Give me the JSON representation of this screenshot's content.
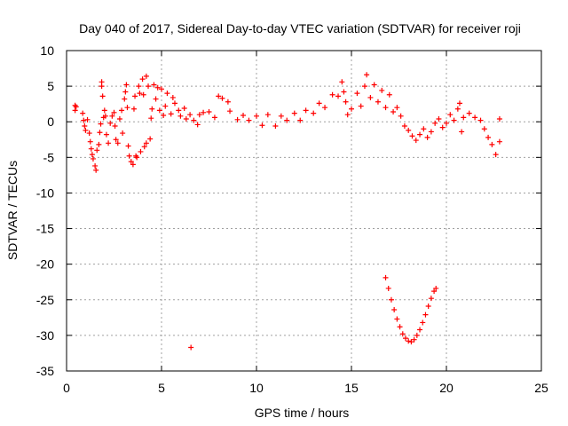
{
  "chart_data": {
    "type": "scatter",
    "title": "Day 040 of 2017, Sidereal Day-to-day VTEC variation (SDTVAR) for receiver roji",
    "xlabel": "GPS time / hours",
    "ylabel": "SDTVAR / TECUs",
    "xlim": [
      0,
      25
    ],
    "ylim": [
      -35,
      10
    ],
    "xticks": [
      0,
      5,
      10,
      15,
      20,
      25
    ],
    "yticks": [
      10,
      5,
      0,
      -5,
      -10,
      -15,
      -20,
      -25,
      -30,
      -35
    ],
    "grid": true,
    "marker": "+",
    "color": "#ff0000",
    "series": [
      {
        "name": "SDTVAR",
        "points": [
          [
            0.45,
            2.3
          ],
          [
            0.45,
            1.6
          ],
          [
            0.5,
            2.1
          ],
          [
            0.85,
            1.2
          ],
          [
            0.9,
            0.2
          ],
          [
            0.95,
            -0.6
          ],
          [
            1.0,
            -1.2
          ],
          [
            1.1,
            0.3
          ],
          [
            1.2,
            -1.6
          ],
          [
            1.25,
            -2.8
          ],
          [
            1.3,
            -3.8
          ],
          [
            1.35,
            -4.6
          ],
          [
            1.4,
            -5.2
          ],
          [
            1.5,
            -6.2
          ],
          [
            1.55,
            -6.8
          ],
          [
            1.6,
            -4.0
          ],
          [
            1.7,
            -3.2
          ],
          [
            1.75,
            -1.5
          ],
          [
            1.8,
            -0.3
          ],
          [
            1.85,
            5.6
          ],
          [
            1.85,
            5.0
          ],
          [
            1.9,
            3.6
          ],
          [
            1.95,
            0.6
          ],
          [
            2.0,
            1.6
          ],
          [
            2.05,
            0.8
          ],
          [
            2.1,
            -1.8
          ],
          [
            2.2,
            -3.0
          ],
          [
            2.3,
            -0.2
          ],
          [
            2.4,
            0.8
          ],
          [
            2.5,
            1.3
          ],
          [
            2.55,
            -0.6
          ],
          [
            2.6,
            -2.5
          ],
          [
            2.7,
            -3.0
          ],
          [
            2.8,
            0.4
          ],
          [
            2.9,
            1.6
          ],
          [
            2.95,
            -1.6
          ],
          [
            3.05,
            3.2
          ],
          [
            3.1,
            4.2
          ],
          [
            3.15,
            5.2
          ],
          [
            3.2,
            2.0
          ],
          [
            3.25,
            -3.4
          ],
          [
            3.3,
            -4.8
          ],
          [
            3.4,
            -5.6
          ],
          [
            3.5,
            -6.0
          ],
          [
            3.55,
            1.8
          ],
          [
            3.6,
            3.6
          ],
          [
            3.65,
            -4.8
          ],
          [
            3.7,
            -5.0
          ],
          [
            3.8,
            5.0
          ],
          [
            3.85,
            4.0
          ],
          [
            3.9,
            -4.2
          ],
          [
            4.0,
            6.0
          ],
          [
            4.05,
            3.8
          ],
          [
            4.1,
            -3.5
          ],
          [
            4.2,
            6.4
          ],
          [
            4.2,
            -3.0
          ],
          [
            4.3,
            5.0
          ],
          [
            4.4,
            -2.4
          ],
          [
            4.45,
            0.5
          ],
          [
            4.5,
            1.8
          ],
          [
            4.6,
            5.2
          ],
          [
            4.7,
            3.2
          ],
          [
            4.8,
            4.8
          ],
          [
            4.9,
            1.6
          ],
          [
            5.0,
            4.6
          ],
          [
            5.1,
            0.9
          ],
          [
            5.2,
            2.2
          ],
          [
            5.3,
            4.0
          ],
          [
            5.5,
            1.1
          ],
          [
            5.6,
            3.4
          ],
          [
            5.7,
            2.6
          ],
          [
            5.9,
            1.6
          ],
          [
            6.0,
            0.8
          ],
          [
            6.2,
            1.9
          ],
          [
            6.3,
            0.4
          ],
          [
            6.5,
            1.0
          ],
          [
            6.55,
            -31.7
          ],
          [
            6.7,
            0.2
          ],
          [
            6.9,
            -0.4
          ],
          [
            7.0,
            1.0
          ],
          [
            7.2,
            1.3
          ],
          [
            7.5,
            1.4
          ],
          [
            7.8,
            0.6
          ],
          [
            8.0,
            3.6
          ],
          [
            8.2,
            3.3
          ],
          [
            8.5,
            2.8
          ],
          [
            8.6,
            1.5
          ],
          [
            9.0,
            0.3
          ],
          [
            9.3,
            0.9
          ],
          [
            9.6,
            0.2
          ],
          [
            10.0,
            0.8
          ],
          [
            10.3,
            -0.5
          ],
          [
            10.6,
            1.0
          ],
          [
            11.0,
            -0.6
          ],
          [
            11.3,
            0.8
          ],
          [
            11.6,
            0.2
          ],
          [
            12.0,
            1.2
          ],
          [
            12.3,
            0.2
          ],
          [
            12.6,
            1.6
          ],
          [
            13.0,
            1.2
          ],
          [
            13.3,
            2.6
          ],
          [
            13.6,
            2.0
          ],
          [
            14.0,
            3.8
          ],
          [
            14.3,
            3.6
          ],
          [
            14.5,
            5.6
          ],
          [
            14.6,
            4.2
          ],
          [
            14.7,
            2.8
          ],
          [
            14.8,
            1.0
          ],
          [
            15.0,
            1.8
          ],
          [
            15.3,
            4.0
          ],
          [
            15.5,
            2.2
          ],
          [
            15.7,
            5.0
          ],
          [
            15.8,
            6.6
          ],
          [
            16.0,
            3.4
          ],
          [
            16.2,
            5.2
          ],
          [
            16.4,
            2.8
          ],
          [
            16.6,
            4.4
          ],
          [
            16.8,
            2.0
          ],
          [
            17.0,
            3.8
          ],
          [
            17.2,
            1.4
          ],
          [
            17.4,
            2.0
          ],
          [
            17.6,
            0.8
          ],
          [
            17.8,
            -0.6
          ],
          [
            18.0,
            -1.2
          ],
          [
            18.2,
            -2.0
          ],
          [
            18.4,
            -2.6
          ],
          [
            18.6,
            -1.8
          ],
          [
            18.8,
            -1.0
          ],
          [
            19.0,
            -2.2
          ],
          [
            19.2,
            -1.4
          ],
          [
            19.4,
            -0.2
          ],
          [
            19.6,
            0.4
          ],
          [
            19.8,
            -0.8
          ],
          [
            20.0,
            -0.2
          ],
          [
            20.2,
            1.0
          ],
          [
            20.4,
            0.2
          ],
          [
            20.6,
            1.8
          ],
          [
            20.7,
            2.6
          ],
          [
            20.8,
            -1.4
          ],
          [
            20.9,
            0.6
          ],
          [
            21.2,
            1.2
          ],
          [
            21.5,
            0.6
          ],
          [
            21.8,
            0.2
          ],
          [
            22.0,
            -1.0
          ],
          [
            22.2,
            -2.2
          ],
          [
            22.4,
            -3.2
          ],
          [
            22.6,
            -4.6
          ],
          [
            22.8,
            -2.8
          ],
          [
            22.8,
            0.4
          ],
          [
            16.8,
            -21.9
          ],
          [
            16.95,
            -23.4
          ],
          [
            17.1,
            -25.0
          ],
          [
            17.25,
            -26.4
          ],
          [
            17.4,
            -27.7
          ],
          [
            17.55,
            -28.8
          ],
          [
            17.7,
            -29.8
          ],
          [
            17.85,
            -30.4
          ],
          [
            18.0,
            -30.8
          ],
          [
            18.15,
            -30.9
          ],
          [
            18.3,
            -30.6
          ],
          [
            18.45,
            -30.0
          ],
          [
            18.6,
            -29.2
          ],
          [
            18.75,
            -28.2
          ],
          [
            18.9,
            -27.1
          ],
          [
            19.05,
            -25.9
          ],
          [
            19.2,
            -24.8
          ],
          [
            19.35,
            -23.8
          ],
          [
            19.45,
            -23.4
          ]
        ]
      }
    ]
  }
}
